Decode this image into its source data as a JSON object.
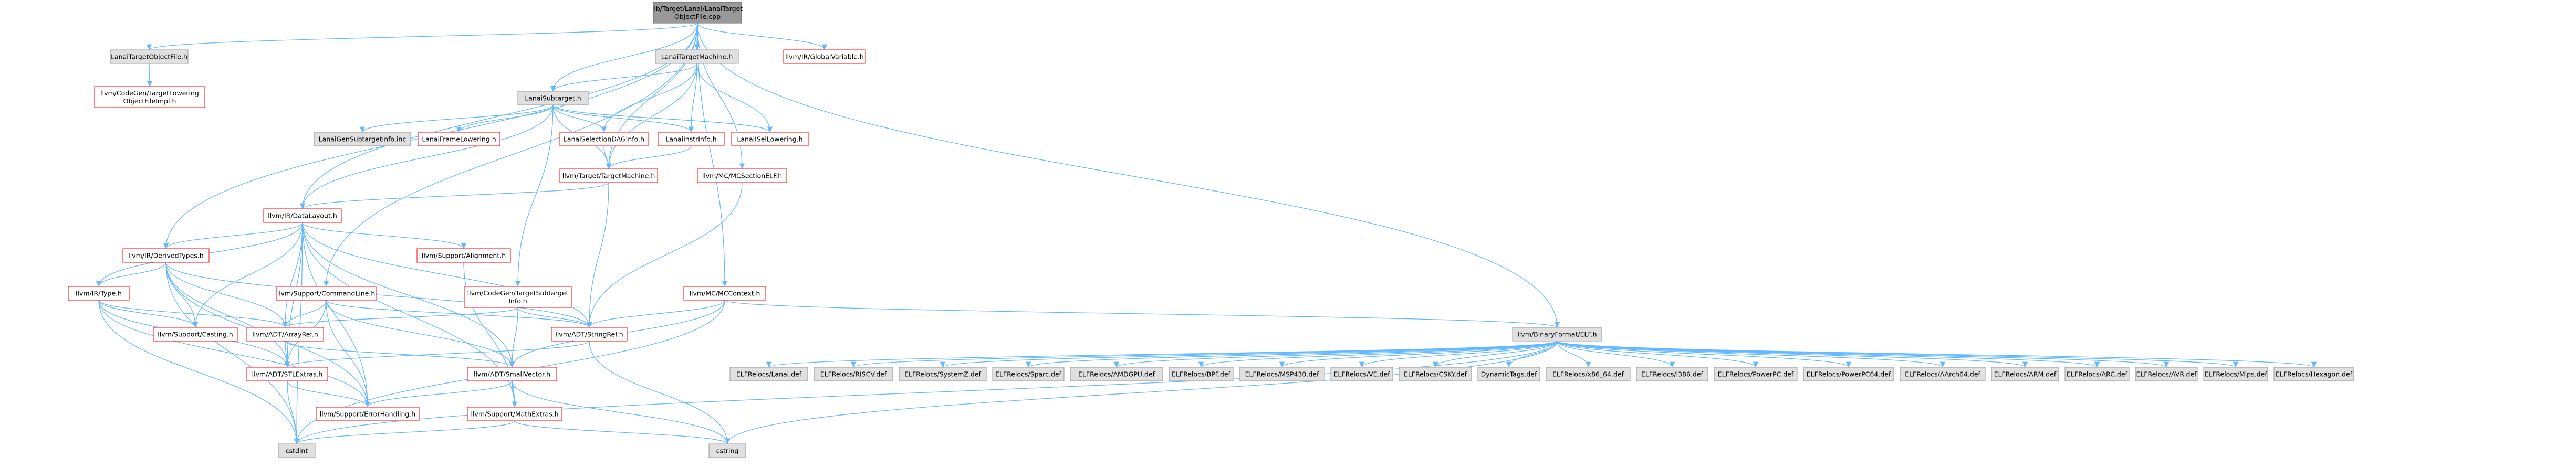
{
  "graph": {
    "node_style": {
      "red": "#ff0000",
      "gray_fill": "#e0e0e0",
      "gray_stroke": "#999999",
      "root_fill": "#999999",
      "edge_color": "#63b8ff"
    },
    "nodes": [
      {
        "id": "root",
        "lines": [
          "lib/Target/Lanai/LanaiTarget",
          "ObjectFile.cpp"
        ],
        "kind": "root"
      },
      {
        "id": "tof",
        "lines": [
          "LanaiTargetObjectFile.h"
        ],
        "kind": "gray"
      },
      {
        "id": "tm",
        "lines": [
          "LanaiTargetMachine.h"
        ],
        "kind": "gray"
      },
      {
        "id": "gv",
        "lines": [
          "llvm/IR/GlobalVariable.h"
        ],
        "kind": "red"
      },
      {
        "id": "cgtlo",
        "lines": [
          "llvm/CodeGen/TargetLowering",
          "ObjectFileImpl.h"
        ],
        "kind": "red"
      },
      {
        "id": "sub",
        "lines": [
          "LanaiSubtarget.h"
        ],
        "kind": "gray"
      },
      {
        "id": "gensub",
        "lines": [
          "LanaiGenSubtargetInfo.inc"
        ],
        "kind": "gray"
      },
      {
        "id": "frame",
        "lines": [
          "LanaiFrameLowering.h"
        ],
        "kind": "red"
      },
      {
        "id": "seldag",
        "lines": [
          "LanaiSelectionDAGInfo.h"
        ],
        "kind": "red"
      },
      {
        "id": "instr",
        "lines": [
          "LanaiInstrInfo.h"
        ],
        "kind": "red"
      },
      {
        "id": "isel",
        "lines": [
          "LanaiISelLowering.h"
        ],
        "kind": "red"
      },
      {
        "id": "ttm",
        "lines": [
          "llvm/Target/TargetMachine.h"
        ],
        "kind": "red"
      },
      {
        "id": "mcelf",
        "lines": [
          "llvm/MC/MCSectionELF.h"
        ],
        "kind": "red"
      },
      {
        "id": "dl",
        "lines": [
          "llvm/IR/DataLayout.h"
        ],
        "kind": "red"
      },
      {
        "id": "dt",
        "lines": [
          "llvm/IR/DerivedTypes.h"
        ],
        "kind": "red"
      },
      {
        "id": "align",
        "lines": [
          "llvm/Support/Alignment.h"
        ],
        "kind": "red"
      },
      {
        "id": "cgtsi",
        "lines": [
          "llvm/CodeGen/TargetSubtarget",
          "Info.h"
        ],
        "kind": "red"
      },
      {
        "id": "mcctx",
        "lines": [
          "llvm/MC/MCContext.h"
        ],
        "kind": "red"
      },
      {
        "id": "type",
        "lines": [
          "llvm/IR/Type.h"
        ],
        "kind": "red"
      },
      {
        "id": "cl",
        "lines": [
          "llvm/Support/CommandLine.h"
        ],
        "kind": "red"
      },
      {
        "id": "cast",
        "lines": [
          "llvm/Support/Casting.h"
        ],
        "kind": "red"
      },
      {
        "id": "aref",
        "lines": [
          "llvm/ADT/ArrayRef.h"
        ],
        "kind": "red"
      },
      {
        "id": "sref",
        "lines": [
          "llvm/ADT/StringRef.h"
        ],
        "kind": "red"
      },
      {
        "id": "elf",
        "lines": [
          "llvm/BinaryFormat/ELF.h"
        ],
        "kind": "gray"
      },
      {
        "id": "stl",
        "lines": [
          "llvm/ADT/STLExtras.h"
        ],
        "kind": "red"
      },
      {
        "id": "svec",
        "lines": [
          "llvm/ADT/SmallVector.h"
        ],
        "kind": "red"
      },
      {
        "id": "err",
        "lines": [
          "llvm/Support/ErrorHandling.h"
        ],
        "kind": "red"
      },
      {
        "id": "math",
        "lines": [
          "llvm/Support/MathExtras.h"
        ],
        "kind": "red"
      },
      {
        "id": "cstdint",
        "lines": [
          "cstdint"
        ],
        "kind": "gray"
      },
      {
        "id": "cstring",
        "lines": [
          "cstring"
        ],
        "kind": "gray"
      },
      {
        "id": "r1",
        "lines": [
          "ELFRelocs/Lanai.def"
        ],
        "kind": "gray"
      },
      {
        "id": "r2",
        "lines": [
          "ELFRelocs/RISCV.def"
        ],
        "kind": "gray"
      },
      {
        "id": "r3",
        "lines": [
          "ELFRelocs/SystemZ.def"
        ],
        "kind": "gray"
      },
      {
        "id": "r4",
        "lines": [
          "ELFRelocs/Sparc.def"
        ],
        "kind": "gray"
      },
      {
        "id": "r5",
        "lines": [
          "ELFRelocs/AMDGPU.def"
        ],
        "kind": "gray"
      },
      {
        "id": "r6",
        "lines": [
          "ELFRelocs/BPF.def"
        ],
        "kind": "gray"
      },
      {
        "id": "r7",
        "lines": [
          "ELFRelocs/MSP430.def"
        ],
        "kind": "gray"
      },
      {
        "id": "r8",
        "lines": [
          "ELFRelocs/VE.def"
        ],
        "kind": "gray"
      },
      {
        "id": "r9",
        "lines": [
          "ELFRelocs/CSKY.def"
        ],
        "kind": "gray"
      },
      {
        "id": "r10",
        "lines": [
          "DynamicTags.def"
        ],
        "kind": "gray"
      },
      {
        "id": "r11",
        "lines": [
          "ELFRelocs/x86_64.def"
        ],
        "kind": "gray"
      },
      {
        "id": "r12",
        "lines": [
          "ELFRelocs/i386.def"
        ],
        "kind": "gray"
      },
      {
        "id": "r13",
        "lines": [
          "ELFRelocs/PowerPC.def"
        ],
        "kind": "gray"
      },
      {
        "id": "r14",
        "lines": [
          "ELFRelocs/PowerPC64.def"
        ],
        "kind": "gray"
      },
      {
        "id": "r15",
        "lines": [
          "ELFRelocs/AArch64.def"
        ],
        "kind": "gray"
      },
      {
        "id": "r16",
        "lines": [
          "ELFRelocs/ARM.def"
        ],
        "kind": "gray"
      },
      {
        "id": "r17",
        "lines": [
          "ELFRelocs/ARC.def"
        ],
        "kind": "gray"
      },
      {
        "id": "r18",
        "lines": [
          "ELFRelocs/AVR.def"
        ],
        "kind": "gray"
      },
      {
        "id": "r19",
        "lines": [
          "ELFRelocs/Mips.def"
        ],
        "kind": "gray"
      },
      {
        "id": "r20",
        "lines": [
          "ELFRelocs/Hexagon.def"
        ],
        "kind": "gray"
      }
    ],
    "edges": [
      [
        "root",
        "tof"
      ],
      [
        "root",
        "tm"
      ],
      [
        "root",
        "gv"
      ],
      [
        "root",
        "sub"
      ],
      [
        "root",
        "dl"
      ],
      [
        "root",
        "dt"
      ],
      [
        "root",
        "cl"
      ],
      [
        "root",
        "mcctx"
      ],
      [
        "root",
        "mcelf"
      ],
      [
        "root",
        "ttm"
      ],
      [
        "root",
        "elf"
      ],
      [
        "tof",
        "cgtlo"
      ],
      [
        "tm",
        "sub"
      ],
      [
        "tm",
        "instr"
      ],
      [
        "tm",
        "seldag"
      ],
      [
        "tm",
        "isel"
      ],
      [
        "tm",
        "ttm"
      ],
      [
        "sub",
        "gensub"
      ],
      [
        "sub",
        "frame"
      ],
      [
        "sub",
        "seldag"
      ],
      [
        "sub",
        "instr"
      ],
      [
        "sub",
        "isel"
      ],
      [
        "sub",
        "cgtsi"
      ],
      [
        "sub",
        "dl"
      ],
      [
        "sub",
        "ttm"
      ],
      [
        "seldag",
        "ttm"
      ],
      [
        "instr",
        "ttm"
      ],
      [
        "ttm",
        "dl"
      ],
      [
        "ttm",
        "sref"
      ],
      [
        "mcelf",
        "sref"
      ],
      [
        "dl",
        "dt"
      ],
      [
        "dl",
        "type"
      ],
      [
        "dl",
        "align"
      ],
      [
        "dl",
        "aref"
      ],
      [
        "dl",
        "sref"
      ],
      [
        "dl",
        "svec"
      ],
      [
        "dl",
        "stl"
      ],
      [
        "dl",
        "cast"
      ],
      [
        "dl",
        "err"
      ],
      [
        "dl",
        "cstdint"
      ],
      [
        "dl",
        "math"
      ],
      [
        "dt",
        "type"
      ],
      [
        "dt",
        "aref"
      ],
      [
        "dt",
        "sref"
      ],
      [
        "dt",
        "cast"
      ],
      [
        "dt",
        "stl"
      ],
      [
        "dt",
        "cstdint"
      ],
      [
        "dt",
        "err"
      ],
      [
        "type",
        "cast"
      ],
      [
        "type",
        "aref"
      ],
      [
        "type",
        "err"
      ],
      [
        "type",
        "cstdint"
      ],
      [
        "type",
        "stl"
      ],
      [
        "align",
        "math"
      ],
      [
        "cgtsi",
        "sref"
      ],
      [
        "cgtsi",
        "aref"
      ],
      [
        "cgtsi",
        "svec"
      ],
      [
        "cl",
        "aref"
      ],
      [
        "cl",
        "sref"
      ],
      [
        "cl",
        "stl"
      ],
      [
        "cl",
        "svec"
      ],
      [
        "cl",
        "err"
      ],
      [
        "mcctx",
        "sref"
      ],
      [
        "mcctx",
        "svec"
      ],
      [
        "mcctx",
        "elf"
      ],
      [
        "mcctx",
        "cstdint"
      ],
      [
        "aref",
        "stl"
      ],
      [
        "aref",
        "svec"
      ],
      [
        "sref",
        "stl"
      ],
      [
        "sref",
        "cstring"
      ],
      [
        "stl",
        "cstdint"
      ],
      [
        "stl",
        "err"
      ],
      [
        "svec",
        "math"
      ],
      [
        "svec",
        "err"
      ],
      [
        "svec",
        "cstring"
      ],
      [
        "math",
        "cstdint"
      ],
      [
        "math",
        "cstring"
      ],
      [
        "elf",
        "cstdint"
      ],
      [
        "elf",
        "cstring"
      ],
      [
        "elf",
        "r1"
      ],
      [
        "elf",
        "r2"
      ],
      [
        "elf",
        "r3"
      ],
      [
        "elf",
        "r4"
      ],
      [
        "elf",
        "r5"
      ],
      [
        "elf",
        "r6"
      ],
      [
        "elf",
        "r7"
      ],
      [
        "elf",
        "r8"
      ],
      [
        "elf",
        "r9"
      ],
      [
        "elf",
        "r10"
      ],
      [
        "elf",
        "r11"
      ],
      [
        "elf",
        "r12"
      ],
      [
        "elf",
        "r13"
      ],
      [
        "elf",
        "r14"
      ],
      [
        "elf",
        "r15"
      ],
      [
        "elf",
        "r16"
      ],
      [
        "elf",
        "r17"
      ],
      [
        "elf",
        "r18"
      ],
      [
        "elf",
        "r19"
      ],
      [
        "elf",
        "r20"
      ]
    ]
  }
}
